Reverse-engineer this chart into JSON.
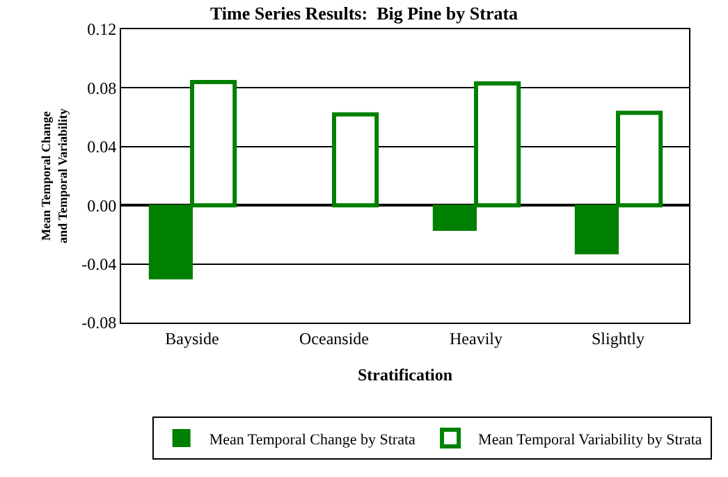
{
  "chart_data": {
    "type": "bar",
    "title": "Time Series Results:  Big Pine by Strata",
    "xlabel": "Stratification",
    "ylabel": "Mean Temporal Change\nand Temporal Variability",
    "categories": [
      "Bayside",
      "Oceanside",
      "Heavily",
      "Slightly"
    ],
    "series": [
      {
        "name": "Mean Temporal Change by Strata",
        "color": "#008000",
        "values": [
          -0.05,
          null,
          -0.017,
          -0.033
        ]
      },
      {
        "name": "Mean Temporal Variability by Strata",
        "color": "#008000",
        "values": [
          0.084,
          0.062,
          0.083,
          0.063
        ]
      }
    ],
    "ylim": [
      -0.08,
      0.12
    ],
    "yticks": [
      {
        "value": -0.08,
        "label": "-0.08"
      },
      {
        "value": -0.04,
        "label": "-0.04"
      },
      {
        "value": 0,
        "label": "0.00"
      },
      {
        "value": 0.04,
        "label": "0.04"
      },
      {
        "value": 0.08,
        "label": "0.08"
      },
      {
        "value": 0.12,
        "label": "0.12"
      }
    ],
    "grid": "y",
    "legend": "bottom right"
  }
}
